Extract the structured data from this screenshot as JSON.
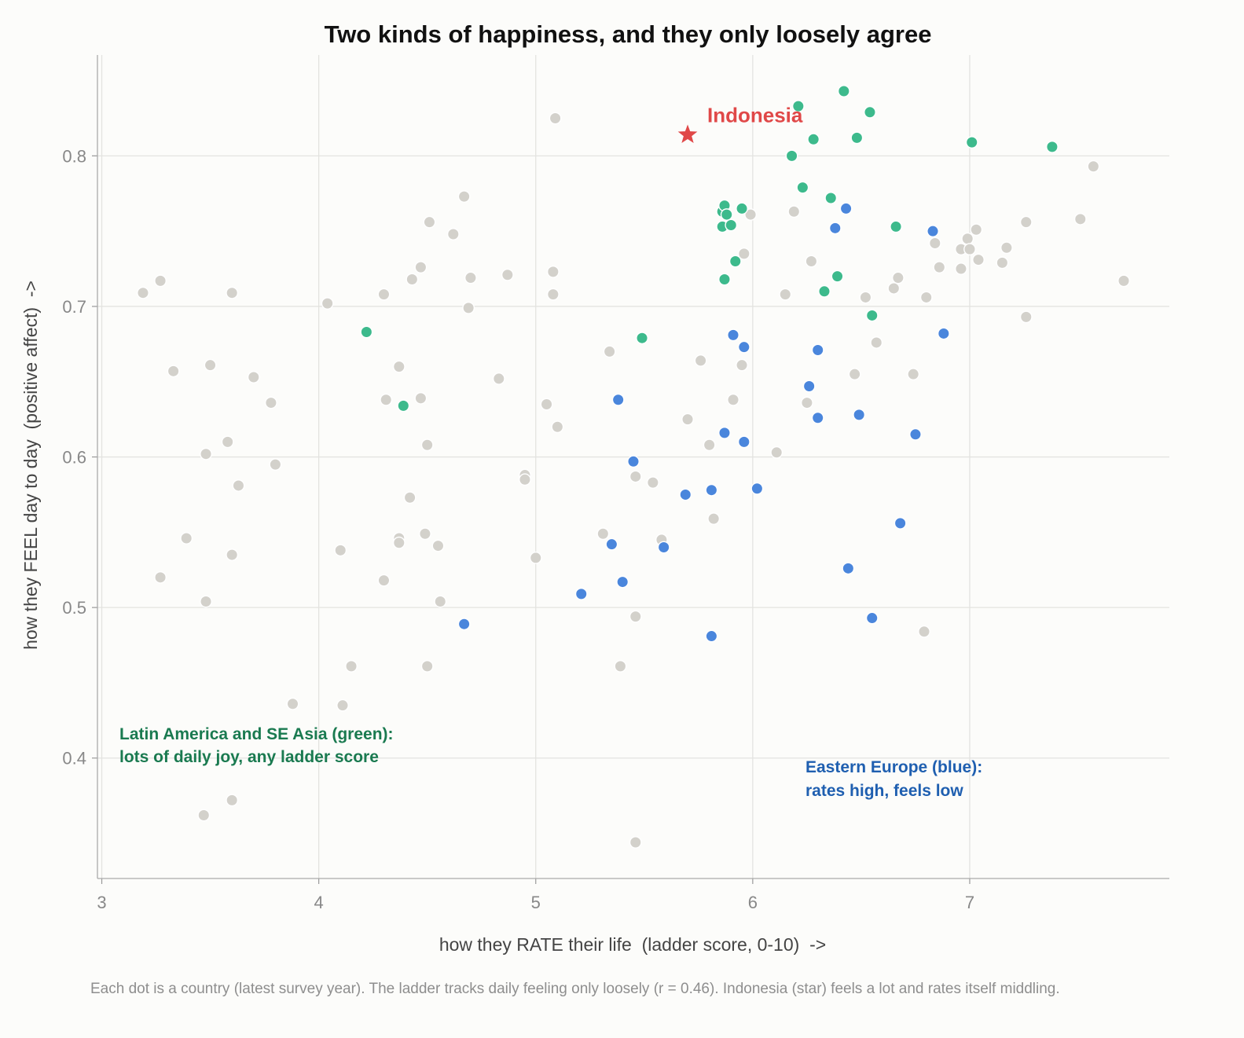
{
  "chart_data": {
    "type": "scatter",
    "title": "Two kinds of happiness, and they only loosely agree",
    "xlabel": "how they RATE their life  (ladder score, 0-10)  ->",
    "ylabel": "how they FEEL day to day  (positive affect)  ->",
    "xlim": [
      2.98,
      7.92
    ],
    "ylim": [
      0.32,
      0.867
    ],
    "x_ticks": [
      3,
      4,
      5,
      6,
      7
    ],
    "y_ticks": [
      0.4,
      0.5,
      0.6,
      0.7,
      0.8
    ],
    "x_tick_labels": [
      "3",
      "4",
      "5",
      "6",
      "7"
    ],
    "y_tick_labels": [
      "0.4",
      "0.5",
      "0.6",
      "0.7",
      "0.8"
    ],
    "grid": true,
    "colors": {
      "other": "#d3d1cb",
      "green": "#3dba8c",
      "blue": "#4a86dc",
      "star": "#e04848",
      "green_text": "#1a7a50",
      "blue_text": "#1f5fb0"
    },
    "series": [
      {
        "group": "other",
        "points": [
          [
            3.19,
            0.709
          ],
          [
            3.27,
            0.717
          ],
          [
            3.33,
            0.657
          ],
          [
            3.5,
            0.661
          ],
          [
            3.6,
            0.709
          ],
          [
            3.7,
            0.653
          ],
          [
            3.78,
            0.636
          ],
          [
            3.48,
            0.602
          ],
          [
            3.58,
            0.61
          ],
          [
            3.63,
            0.581
          ],
          [
            3.8,
            0.595
          ],
          [
            3.39,
            0.546
          ],
          [
            3.6,
            0.535
          ],
          [
            3.27,
            0.52
          ],
          [
            3.48,
            0.504
          ],
          [
            3.88,
            0.436
          ],
          [
            3.47,
            0.362
          ],
          [
            3.6,
            0.372
          ],
          [
            4.04,
            0.702
          ],
          [
            4.3,
            0.708
          ],
          [
            4.43,
            0.718
          ],
          [
            4.47,
            0.726
          ],
          [
            4.51,
            0.756
          ],
          [
            4.62,
            0.748
          ],
          [
            4.67,
            0.773
          ],
          [
            4.7,
            0.719
          ],
          [
            4.69,
            0.699
          ],
          [
            4.87,
            0.721
          ],
          [
            4.37,
            0.66
          ],
          [
            4.31,
            0.638
          ],
          [
            4.47,
            0.639
          ],
          [
            4.5,
            0.608
          ],
          [
            4.83,
            0.652
          ],
          [
            4.42,
            0.573
          ],
          [
            4.37,
            0.546
          ],
          [
            4.37,
            0.543
          ],
          [
            4.49,
            0.549
          ],
          [
            4.55,
            0.541
          ],
          [
            4.1,
            0.538
          ],
          [
            4.3,
            0.518
          ],
          [
            4.56,
            0.504
          ],
          [
            4.15,
            0.461
          ],
          [
            4.5,
            0.461
          ],
          [
            4.11,
            0.435
          ],
          [
            5.09,
            0.825
          ],
          [
            5.08,
            0.723
          ],
          [
            5.08,
            0.708
          ],
          [
            4.95,
            0.588
          ],
          [
            4.95,
            0.585
          ],
          [
            5.05,
            0.635
          ],
          [
            5.1,
            0.62
          ],
          [
            5.0,
            0.533
          ],
          [
            5.34,
            0.67
          ],
          [
            5.46,
            0.587
          ],
          [
            5.54,
            0.583
          ],
          [
            5.31,
            0.549
          ],
          [
            5.58,
            0.545
          ],
          [
            5.46,
            0.494
          ],
          [
            5.39,
            0.461
          ],
          [
            5.46,
            0.344
          ],
          [
            5.76,
            0.664
          ],
          [
            5.7,
            0.625
          ],
          [
            5.8,
            0.608
          ],
          [
            5.82,
            0.559
          ],
          [
            5.99,
            0.761
          ],
          [
            5.96,
            0.735
          ],
          [
            5.95,
            0.661
          ],
          [
            5.91,
            0.638
          ],
          [
            6.11,
            0.603
          ],
          [
            6.19,
            0.763
          ],
          [
            6.27,
            0.73
          ],
          [
            6.15,
            0.708
          ],
          [
            6.25,
            0.636
          ],
          [
            6.47,
            0.655
          ],
          [
            6.52,
            0.706
          ],
          [
            6.57,
            0.676
          ],
          [
            6.65,
            0.712
          ],
          [
            6.67,
            0.719
          ],
          [
            6.74,
            0.655
          ],
          [
            6.8,
            0.706
          ],
          [
            6.84,
            0.742
          ],
          [
            6.86,
            0.726
          ],
          [
            6.96,
            0.738
          ],
          [
            6.99,
            0.745
          ],
          [
            7.0,
            0.738
          ],
          [
            7.03,
            0.751
          ],
          [
            7.04,
            0.731
          ],
          [
            6.96,
            0.725
          ],
          [
            6.79,
            0.484
          ],
          [
            7.15,
            0.729
          ],
          [
            7.17,
            0.739
          ],
          [
            7.26,
            0.756
          ],
          [
            7.26,
            0.693
          ],
          [
            7.51,
            0.758
          ],
          [
            7.57,
            0.793
          ],
          [
            7.71,
            0.717
          ]
        ]
      },
      {
        "group": "green",
        "points": [
          [
            6.21,
            0.833
          ],
          [
            6.42,
            0.843
          ],
          [
            6.54,
            0.829
          ],
          [
            6.28,
            0.811
          ],
          [
            6.48,
            0.812
          ],
          [
            6.18,
            0.8
          ],
          [
            7.01,
            0.809
          ],
          [
            7.38,
            0.806
          ],
          [
            6.23,
            0.779
          ],
          [
            6.36,
            0.772
          ],
          [
            5.86,
            0.763
          ],
          [
            5.87,
            0.767
          ],
          [
            5.88,
            0.761
          ],
          [
            5.95,
            0.765
          ],
          [
            5.86,
            0.753
          ],
          [
            5.9,
            0.754
          ],
          [
            6.66,
            0.753
          ],
          [
            5.92,
            0.73
          ],
          [
            5.87,
            0.718
          ],
          [
            6.39,
            0.72
          ],
          [
            6.33,
            0.71
          ],
          [
            6.55,
            0.694
          ],
          [
            4.22,
            0.683
          ],
          [
            5.49,
            0.679
          ],
          [
            4.39,
            0.634
          ]
        ]
      },
      {
        "group": "blue",
        "points": [
          [
            6.43,
            0.765
          ],
          [
            6.38,
            0.752
          ],
          [
            6.83,
            0.75
          ],
          [
            5.91,
            0.681
          ],
          [
            5.96,
            0.673
          ],
          [
            6.3,
            0.671
          ],
          [
            6.88,
            0.682
          ],
          [
            5.38,
            0.638
          ],
          [
            6.26,
            0.647
          ],
          [
            5.87,
            0.616
          ],
          [
            5.96,
            0.61
          ],
          [
            6.3,
            0.626
          ],
          [
            6.49,
            0.628
          ],
          [
            6.75,
            0.615
          ],
          [
            5.45,
            0.597
          ],
          [
            5.69,
            0.575
          ],
          [
            5.81,
            0.578
          ],
          [
            6.02,
            0.579
          ],
          [
            5.35,
            0.542
          ],
          [
            5.59,
            0.54
          ],
          [
            6.68,
            0.556
          ],
          [
            5.4,
            0.517
          ],
          [
            5.21,
            0.509
          ],
          [
            6.44,
            0.526
          ],
          [
            4.67,
            0.489
          ],
          [
            5.81,
            0.481
          ],
          [
            6.55,
            0.493
          ]
        ]
      }
    ],
    "highlight": {
      "name": "Indonesia",
      "x": 5.7,
      "y": 0.814
    },
    "annotations": [
      {
        "id": "green-note",
        "lines": [
          "Latin America and SE Asia (green):",
          "lots of daily joy, any ladder score"
        ]
      },
      {
        "id": "blue-note",
        "lines": [
          "Eastern Europe (blue):",
          "rates high, feels low"
        ]
      }
    ]
  },
  "caption": "Each dot is a country (latest survey year). The ladder tracks daily feeling only loosely (r = 0.46). Indonesia (star) feels a lot and rates itself middling."
}
